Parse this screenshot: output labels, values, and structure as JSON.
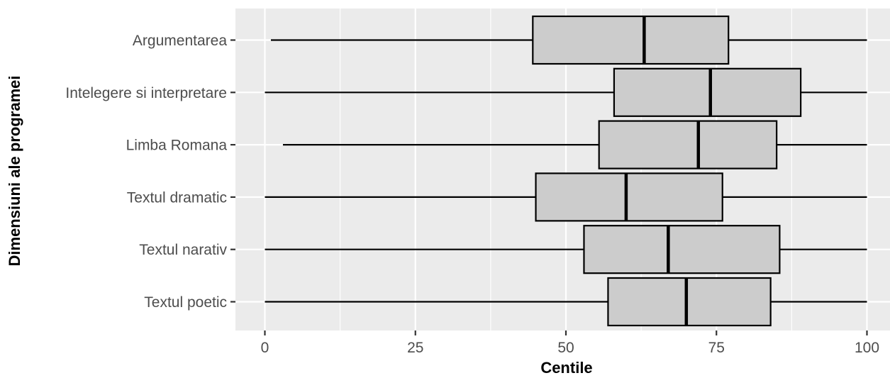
{
  "chart_data": {
    "type": "boxplot",
    "orientation": "horizontal",
    "xlabel": "Centile",
    "ylabel": "Dimensiuni ale programei",
    "xlim": [
      0,
      100
    ],
    "x_ticks": [
      0,
      25,
      50,
      75,
      100
    ],
    "x_tick_labels": [
      "0",
      "25",
      "50",
      "75",
      "100"
    ],
    "grid": true,
    "categories": [
      "Argumentarea",
      "Intelegere si interpretare",
      "Limba Romana",
      "Textul dramatic",
      "Textul narativ",
      "Textul poetic"
    ],
    "boxes": [
      {
        "category": "Argumentarea",
        "min": 1,
        "q1": 44.5,
        "median": 63,
        "q3": 77,
        "max": 100
      },
      {
        "category": "Intelegere si interpretare",
        "min": 0,
        "q1": 58,
        "median": 74,
        "q3": 89,
        "max": 100
      },
      {
        "category": "Limba Romana",
        "min": 3,
        "q1": 55.5,
        "median": 72,
        "q3": 85,
        "max": 100
      },
      {
        "category": "Textul dramatic",
        "min": 0,
        "q1": 45,
        "median": 60,
        "q3": 76,
        "max": 100
      },
      {
        "category": "Textul narativ",
        "min": 0,
        "q1": 53,
        "median": 67,
        "q3": 85.5,
        "max": 100
      },
      {
        "category": "Textul poetic",
        "min": 0,
        "q1": 57,
        "median": 70,
        "q3": 84,
        "max": 100
      }
    ],
    "colors": {
      "panel": "#ebebeb",
      "box_fill": "#cccccc",
      "line": "#000000",
      "grid": "#ffffff"
    }
  }
}
